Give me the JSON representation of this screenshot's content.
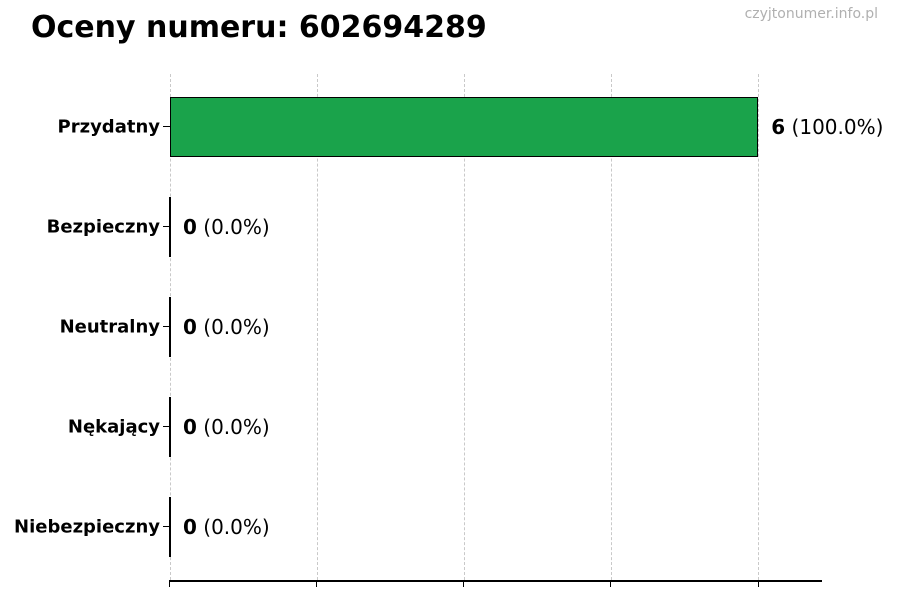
{
  "page": {
    "watermark": "czyjtonumer.info.pl"
  },
  "chart_data": {
    "type": "bar",
    "orientation": "horizontal",
    "title": "Oceny numeru: 602694289",
    "categories": [
      "Przydatny",
      "Bezpieczny",
      "Neutralny",
      "Nękający",
      "Niebezpieczny"
    ],
    "values": [
      6,
      0,
      0,
      0,
      0
    ],
    "count_labels": [
      "6",
      "0",
      "0",
      "0",
      "0"
    ],
    "percent_labels": [
      "(100.0%)",
      "(0.0%)",
      "(0.0%)",
      "(0.0%)",
      "(0.0%)"
    ],
    "xlabel": "",
    "ylabel": "",
    "xlim": [
      0,
      6.65
    ],
    "x_axis_ticks": [
      0,
      1.5,
      3,
      4.5,
      6
    ],
    "x_tick_labels_visible": false,
    "grid": "vertical-dashed",
    "legend": "none",
    "bar_color": "#1aa34b",
    "bar_edge_color": "#000000",
    "gridline_color": "#c9c9c9"
  }
}
